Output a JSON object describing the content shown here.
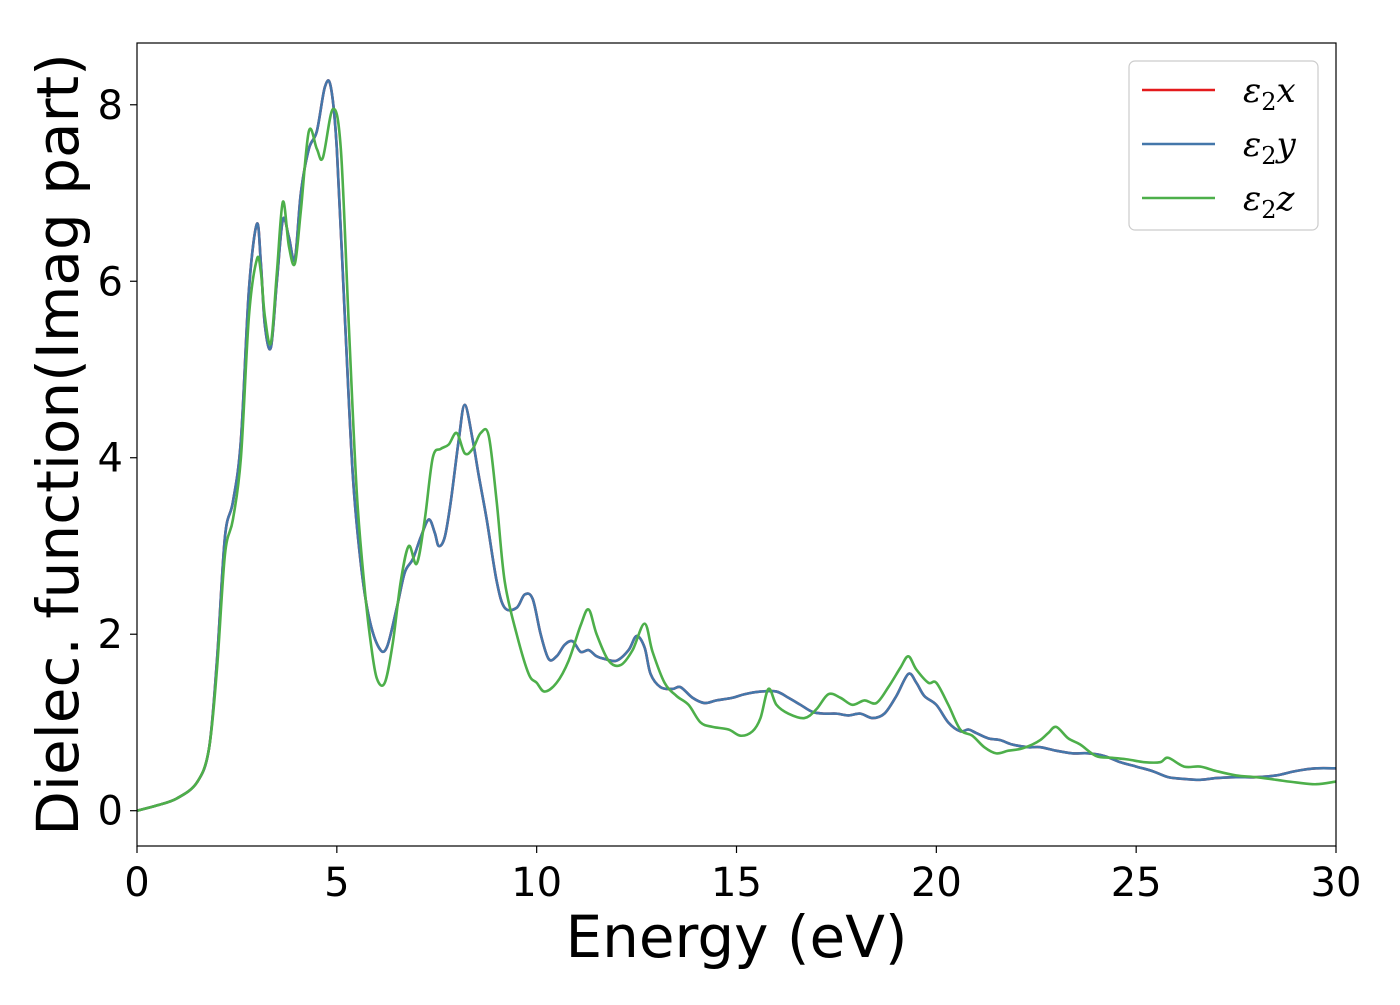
{
  "chart_data": {
    "type": "line",
    "xlabel": "Energy (eV)",
    "ylabel": "Dielec. function(Imag part)",
    "xlim": [
      0,
      30
    ],
    "ylim": [
      -0.4,
      8.7
    ],
    "xticks": [
      0,
      5,
      10,
      15,
      20,
      25,
      30
    ],
    "yticks": [
      0,
      2,
      4,
      6,
      8
    ],
    "xtick_labels": [
      "0",
      "5",
      "10",
      "15",
      "20",
      "25",
      "30"
    ],
    "ytick_labels": [
      "0",
      "2",
      "4",
      "6",
      "8"
    ],
    "grid": false,
    "legend_position": "top-right",
    "series": [
      {
        "name": "ε2x",
        "name_parts": {
          "base": "ε",
          "sub": "2",
          "tail": "x"
        },
        "color": "#e41a1c",
        "x": [
          0,
          0.5,
          1,
          1.5,
          1.8,
          2,
          2.2,
          2.4,
          2.6,
          2.8,
          3,
          3.1,
          3.2,
          3.35,
          3.5,
          3.65,
          3.8,
          3.95,
          4.1,
          4.3,
          4.5,
          4.7,
          4.85,
          5,
          5.2,
          5.4,
          5.6,
          5.8,
          6.05,
          6.25,
          6.5,
          6.7,
          6.9,
          7.1,
          7.3,
          7.45,
          7.55,
          7.7,
          7.85,
          8.05,
          8.2,
          8.4,
          8.55,
          8.75,
          9,
          9.2,
          9.5,
          9.7,
          9.9,
          10.1,
          10.3,
          10.5,
          10.7,
          10.9,
          11.1,
          11.3,
          11.5,
          11.7,
          12,
          12.3,
          12.5,
          12.7,
          12.85,
          13.1,
          13.4,
          13.6,
          13.9,
          14.2,
          14.5,
          14.9,
          15.2,
          15.6,
          16,
          16.3,
          16.6,
          16.9,
          17.2,
          17.5,
          17.8,
          18.1,
          18.4,
          18.7,
          19,
          19.3,
          19.5,
          19.7,
          20,
          20.3,
          20.6,
          20.8,
          21,
          21.3,
          21.6,
          21.9,
          22.3,
          22.6,
          23,
          23.4,
          23.8,
          24.2,
          24.6,
          25,
          25.4,
          25.8,
          26.2,
          26.6,
          27,
          27.5,
          28,
          28.5,
          29,
          29.5,
          30
        ],
        "y": [
          0,
          0.06,
          0.14,
          0.32,
          0.7,
          1.7,
          3.1,
          3.5,
          4.2,
          5.9,
          6.65,
          6.2,
          5.5,
          5.25,
          6.0,
          6.7,
          6.5,
          6.25,
          7.0,
          7.5,
          7.7,
          8.2,
          8.2,
          7.5,
          5.6,
          3.8,
          2.8,
          2.2,
          1.85,
          1.85,
          2.3,
          2.7,
          2.85,
          3.1,
          3.3,
          3.15,
          3.0,
          3.1,
          3.5,
          4.2,
          4.6,
          4.2,
          3.8,
          3.3,
          2.6,
          2.3,
          2.3,
          2.45,
          2.4,
          2.0,
          1.72,
          1.75,
          1.88,
          1.92,
          1.8,
          1.82,
          1.75,
          1.72,
          1.7,
          1.82,
          1.98,
          1.85,
          1.55,
          1.4,
          1.38,
          1.4,
          1.28,
          1.22,
          1.25,
          1.28,
          1.32,
          1.35,
          1.35,
          1.28,
          1.2,
          1.12,
          1.1,
          1.1,
          1.08,
          1.1,
          1.05,
          1.1,
          1.3,
          1.55,
          1.45,
          1.3,
          1.2,
          1.0,
          0.9,
          0.92,
          0.88,
          0.82,
          0.8,
          0.75,
          0.72,
          0.72,
          0.68,
          0.65,
          0.65,
          0.62,
          0.55,
          0.5,
          0.45,
          0.38,
          0.36,
          0.35,
          0.37,
          0.38,
          0.38,
          0.4,
          0.45,
          0.48,
          0.48
        ]
      },
      {
        "name": "ε2y",
        "name_parts": {
          "base": "ε",
          "sub": "2",
          "tail": "y"
        },
        "color": "#4477aa",
        "x": [
          0,
          0.5,
          1,
          1.5,
          1.8,
          2,
          2.2,
          2.4,
          2.6,
          2.8,
          3,
          3.1,
          3.2,
          3.35,
          3.5,
          3.65,
          3.8,
          3.95,
          4.1,
          4.3,
          4.5,
          4.7,
          4.85,
          5,
          5.2,
          5.4,
          5.6,
          5.8,
          6.05,
          6.25,
          6.5,
          6.7,
          6.9,
          7.1,
          7.3,
          7.45,
          7.55,
          7.7,
          7.85,
          8.05,
          8.2,
          8.4,
          8.55,
          8.75,
          9,
          9.2,
          9.5,
          9.7,
          9.9,
          10.1,
          10.3,
          10.5,
          10.7,
          10.9,
          11.1,
          11.3,
          11.5,
          11.7,
          12,
          12.3,
          12.5,
          12.7,
          12.85,
          13.1,
          13.4,
          13.6,
          13.9,
          14.2,
          14.5,
          14.9,
          15.2,
          15.6,
          16,
          16.3,
          16.6,
          16.9,
          17.2,
          17.5,
          17.8,
          18.1,
          18.4,
          18.7,
          19,
          19.3,
          19.5,
          19.7,
          20,
          20.3,
          20.6,
          20.8,
          21,
          21.3,
          21.6,
          21.9,
          22.3,
          22.6,
          23,
          23.4,
          23.8,
          24.2,
          24.6,
          25,
          25.4,
          25.8,
          26.2,
          26.6,
          27,
          27.5,
          28,
          28.5,
          29,
          29.5,
          30
        ],
        "y": [
          0,
          0.06,
          0.14,
          0.32,
          0.7,
          1.7,
          3.1,
          3.5,
          4.2,
          5.9,
          6.65,
          6.2,
          5.5,
          5.25,
          6.0,
          6.7,
          6.5,
          6.25,
          7.0,
          7.5,
          7.7,
          8.2,
          8.2,
          7.5,
          5.6,
          3.8,
          2.8,
          2.2,
          1.85,
          1.85,
          2.3,
          2.7,
          2.85,
          3.1,
          3.3,
          3.15,
          3.0,
          3.1,
          3.5,
          4.2,
          4.6,
          4.2,
          3.8,
          3.3,
          2.6,
          2.3,
          2.3,
          2.45,
          2.4,
          2.0,
          1.72,
          1.75,
          1.88,
          1.92,
          1.8,
          1.82,
          1.75,
          1.72,
          1.7,
          1.82,
          1.98,
          1.85,
          1.55,
          1.4,
          1.38,
          1.4,
          1.28,
          1.22,
          1.25,
          1.28,
          1.32,
          1.35,
          1.35,
          1.28,
          1.2,
          1.12,
          1.1,
          1.1,
          1.08,
          1.1,
          1.05,
          1.1,
          1.3,
          1.55,
          1.45,
          1.3,
          1.2,
          1.0,
          0.9,
          0.92,
          0.88,
          0.82,
          0.8,
          0.75,
          0.72,
          0.72,
          0.68,
          0.65,
          0.65,
          0.62,
          0.55,
          0.5,
          0.45,
          0.38,
          0.36,
          0.35,
          0.37,
          0.38,
          0.38,
          0.4,
          0.45,
          0.48,
          0.48
        ]
      },
      {
        "name": "ε2z",
        "name_parts": {
          "base": "ε",
          "sub": "2",
          "tail": "z"
        },
        "color": "#4daf4a",
        "x": [
          0,
          0.5,
          1,
          1.5,
          1.8,
          2,
          2.2,
          2.4,
          2.6,
          2.8,
          3,
          3.1,
          3.2,
          3.35,
          3.5,
          3.65,
          3.8,
          3.95,
          4.1,
          4.3,
          4.5,
          4.65,
          4.9,
          5.1,
          5.3,
          5.5,
          5.7,
          5.85,
          6.0,
          6.2,
          6.4,
          6.6,
          6.8,
          7.0,
          7.2,
          7.4,
          7.6,
          7.8,
          8.0,
          8.2,
          8.4,
          8.6,
          8.8,
          9.0,
          9.2,
          9.5,
          9.8,
          10.0,
          10.2,
          10.5,
          10.8,
          11.1,
          11.3,
          11.5,
          11.8,
          12.1,
          12.4,
          12.7,
          12.9,
          13.2,
          13.5,
          13.8,
          14.1,
          14.4,
          14.8,
          15.1,
          15.4,
          15.6,
          15.8,
          16.0,
          16.3,
          16.7,
          17.0,
          17.3,
          17.6,
          17.9,
          18.2,
          18.5,
          18.8,
          19.1,
          19.3,
          19.5,
          19.8,
          20.0,
          20.3,
          20.6,
          20.9,
          21.2,
          21.5,
          21.8,
          22.1,
          22.4,
          22.6,
          22.8,
          23.0,
          23.3,
          23.6,
          24.0,
          24.4,
          24.8,
          25.2,
          25.6,
          25.8,
          26.2,
          26.6,
          27,
          27.5,
          28,
          28.5,
          29,
          29.5,
          30
        ],
        "y": [
          0,
          0.06,
          0.14,
          0.32,
          0.7,
          1.6,
          2.9,
          3.3,
          4.0,
          5.6,
          6.25,
          6.1,
          5.6,
          5.3,
          6.1,
          6.9,
          6.4,
          6.2,
          6.8,
          7.7,
          7.5,
          7.4,
          7.95,
          7.5,
          5.5,
          3.6,
          2.5,
          1.9,
          1.5,
          1.45,
          1.9,
          2.6,
          3.0,
          2.8,
          3.3,
          4.0,
          4.1,
          4.15,
          4.28,
          4.05,
          4.1,
          4.28,
          4.25,
          3.5,
          2.6,
          2.0,
          1.55,
          1.45,
          1.35,
          1.45,
          1.7,
          2.1,
          2.28,
          2.0,
          1.7,
          1.65,
          1.82,
          2.12,
          1.8,
          1.45,
          1.3,
          1.2,
          1.0,
          0.95,
          0.92,
          0.85,
          0.9,
          1.05,
          1.38,
          1.2,
          1.1,
          1.05,
          1.15,
          1.32,
          1.28,
          1.2,
          1.25,
          1.22,
          1.4,
          1.62,
          1.75,
          1.6,
          1.45,
          1.45,
          1.2,
          0.92,
          0.85,
          0.72,
          0.65,
          0.68,
          0.7,
          0.75,
          0.8,
          0.88,
          0.95,
          0.82,
          0.75,
          0.62,
          0.6,
          0.58,
          0.55,
          0.55,
          0.6,
          0.5,
          0.5,
          0.45,
          0.4,
          0.38,
          0.35,
          0.32,
          0.3,
          0.33
        ]
      }
    ]
  }
}
